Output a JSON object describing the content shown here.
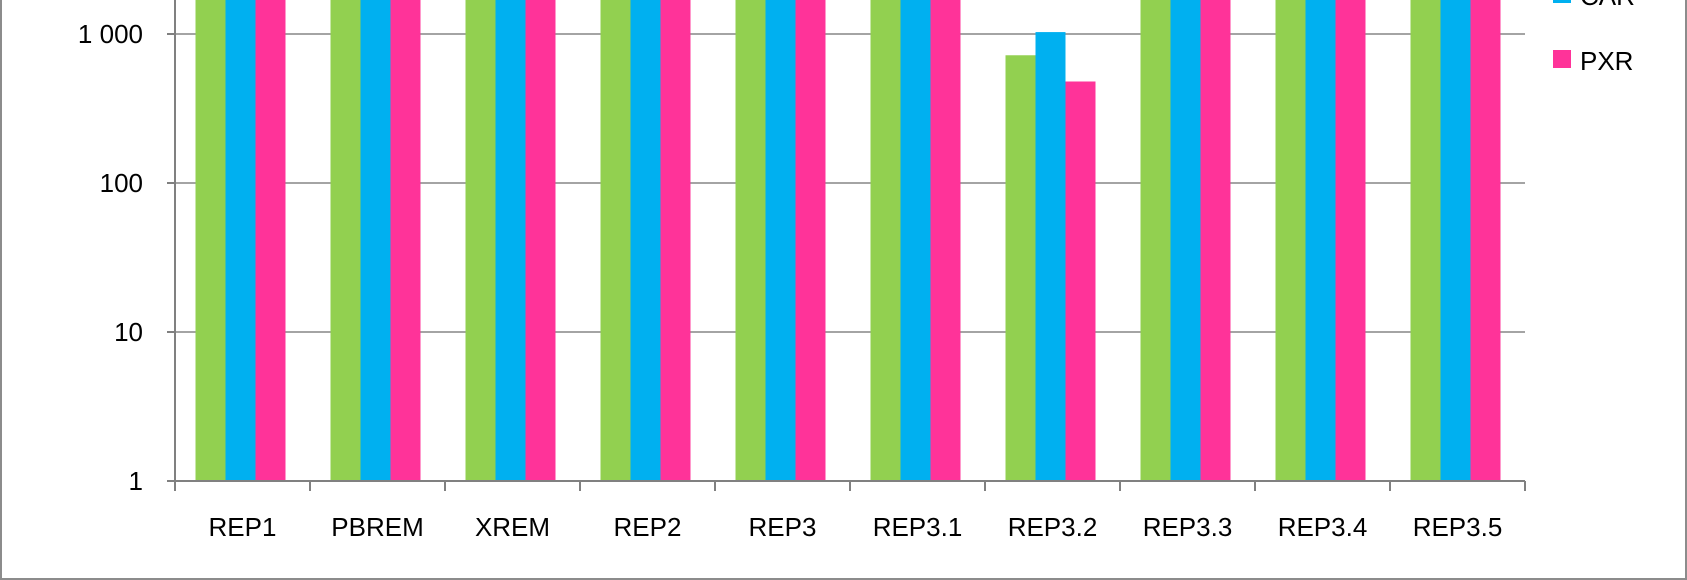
{
  "chart_data": {
    "type": "bar",
    "y_scale": "log",
    "ylim": [
      1,
      10000
    ],
    "y_ticks": [
      {
        "value": 1,
        "label": "1"
      },
      {
        "value": 10,
        "label": "10"
      },
      {
        "value": 100,
        "label": "100"
      },
      {
        "value": 1000,
        "label": "1 000"
      }
    ],
    "grid": true,
    "legend_position": "right",
    "categories": [
      "REP1",
      "PBREM",
      "XREM",
      "REP2",
      "REP3",
      "REP3.1",
      "REP3.2",
      "REP3.3",
      "REP3.4",
      "REP3.5"
    ],
    "series": [
      {
        "name": "",
        "color": "#92D050",
        "values": [
          10000,
          10000,
          10000,
          10000,
          10000,
          10000,
          720,
          10000,
          10000,
          10000
        ]
      },
      {
        "name": "CAR",
        "color": "#00B0F0",
        "values": [
          10000,
          10000,
          10000,
          10000,
          10000,
          10000,
          1030,
          10000,
          10000,
          10000
        ]
      },
      {
        "name": "PXR",
        "color": "#FF3399",
        "values": [
          10000,
          10000,
          10000,
          10000,
          10000,
          10000,
          480,
          10000,
          10000,
          10000
        ]
      }
    ]
  }
}
